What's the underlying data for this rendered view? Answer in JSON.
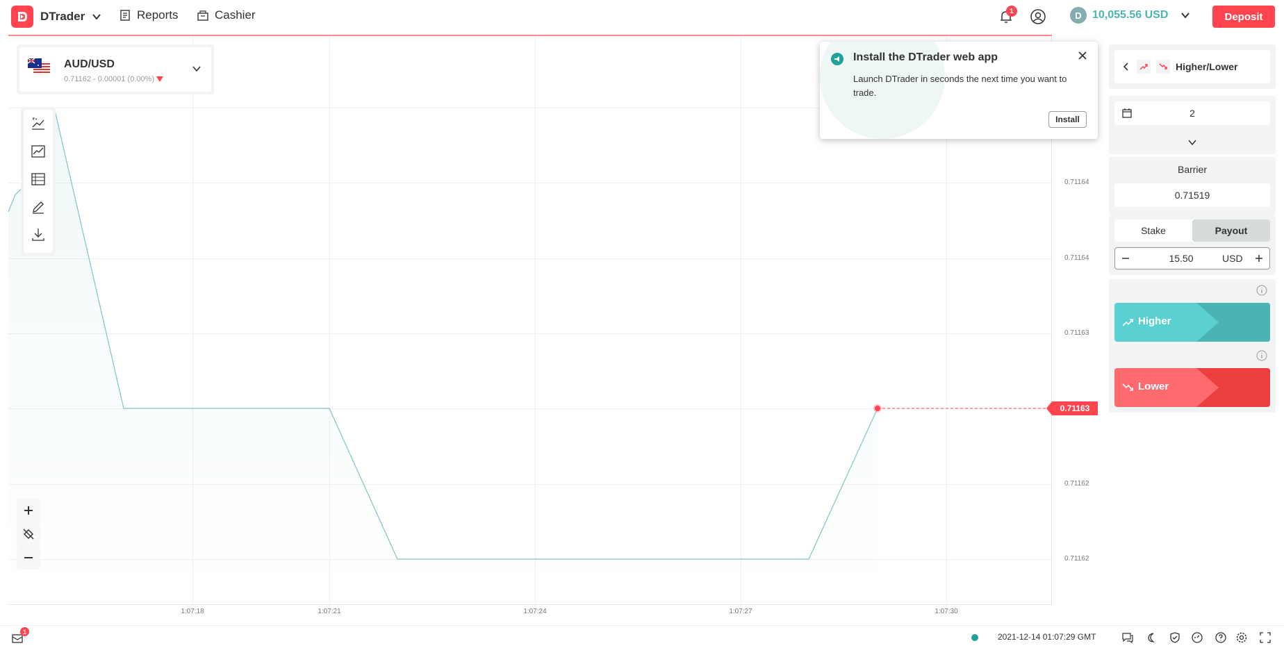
{
  "header": {
    "brand": "DTrader",
    "menu": {
      "reports": "Reports",
      "cashier": "Cashier"
    },
    "notifications_count": "1",
    "account": {
      "currency_symbol": "D",
      "balance": "10,055.56 USD"
    },
    "deposit": "Deposit"
  },
  "asset": {
    "name": "AUD/USD",
    "quote": "0.71162 - 0.00001 (0.00%)"
  },
  "chart": {
    "y_ticks": [
      "0.71164",
      "0.71164",
      "0.71163",
      "0.71162",
      "0.71162"
    ],
    "x_ticks": [
      "1:07:18",
      "1:07:21",
      "1:07:24",
      "1:07:27",
      "1:07:30"
    ],
    "current_price": "0.71163",
    "line_color": "#85c8c8",
    "marker_color": "#ff444f"
  },
  "popup": {
    "title": "Install the DTrader web app",
    "text": "Launch DTrader in seconds the next time you want to trade.",
    "install": "Install"
  },
  "trade": {
    "type": "Higher/Lower",
    "duration": "2",
    "barrier_label": "Barrier",
    "barrier": "0.71519",
    "tabs": {
      "stake": "Stake",
      "payout": "Payout"
    },
    "amount": "15.50",
    "currency": "USD",
    "higher": "Higher",
    "lower": "Lower",
    "higher_color": "#4bb4b3",
    "lower_color": "#ec3f3f"
  },
  "footer": {
    "messages_count": "1",
    "server_time": "2021-12-14 01:07:29 GMT"
  }
}
